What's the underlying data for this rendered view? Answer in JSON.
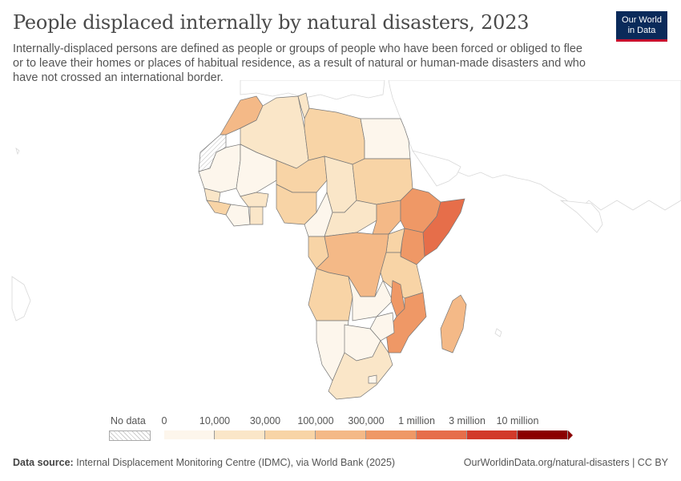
{
  "header": {
    "title": "People displaced internally by natural disasters, 2023",
    "subtitle": "Internally-displaced persons are defined as people or groups of people who have been forced or obliged to flee or to leave their homes or places of habitual residence, as a result of natural or human-made disasters and who have not crossed an international border."
  },
  "logo": {
    "line1": "Our World",
    "line2": "in Data"
  },
  "legend": {
    "nodata_label": "No data",
    "bins": [
      {
        "label": "0",
        "color": "#fdf6ec"
      },
      {
        "label": "10,000",
        "color": "#fae6c8"
      },
      {
        "label": "30,000",
        "color": "#f8d4a6"
      },
      {
        "label": "100,000",
        "color": "#f4b987"
      },
      {
        "label": "300,000",
        "color": "#ef9866"
      },
      {
        "label": "1 million",
        "color": "#e66e4a"
      },
      {
        "label": "3 million",
        "color": "#d23a2a"
      },
      {
        "label": "10 million",
        "color": "#8b0000"
      }
    ]
  },
  "map_data": {
    "region": "Africa",
    "year": 2023,
    "countries": [
      {
        "name": "Somalia",
        "category": "1 million–3 million"
      },
      {
        "name": "Ethiopia",
        "category": "300,000–1 million"
      },
      {
        "name": "Kenya",
        "category": "300,000–1 million"
      },
      {
        "name": "Mozambique",
        "category": "300,000–1 million"
      },
      {
        "name": "Malawi",
        "category": "300,000–1 million"
      },
      {
        "name": "Morocco",
        "category": "100,000–300,000"
      },
      {
        "name": "DR Congo",
        "category": "100,000–300,000"
      },
      {
        "name": "South Sudan",
        "category": "100,000–300,000"
      },
      {
        "name": "Nigeria",
        "category": "30,000–100,000"
      },
      {
        "name": "Sudan",
        "category": "30,000–100,000"
      },
      {
        "name": "Madagascar",
        "category": "30,000–100,000"
      },
      {
        "name": "Angola",
        "category": "30,000–100,000"
      },
      {
        "name": "Tanzania",
        "category": "30,000–100,000"
      },
      {
        "name": "Niger",
        "category": "30,000–100,000"
      },
      {
        "name": "Libya",
        "category": "30,000–100,000"
      },
      {
        "name": "Algeria",
        "category": "10,000–30,000"
      },
      {
        "name": "Chad",
        "category": "10,000–30,000"
      },
      {
        "name": "South Africa",
        "category": "10,000–30,000"
      },
      {
        "name": "Egypt",
        "category": "0–10,000"
      },
      {
        "name": "Mali",
        "category": "0–10,000"
      },
      {
        "name": "Mauritania",
        "category": "0–10,000"
      },
      {
        "name": "Namibia",
        "category": "0–10,000"
      },
      {
        "name": "Zambia",
        "category": "0–10,000"
      },
      {
        "name": "Botswana",
        "category": "0–10,000"
      },
      {
        "name": "Western Sahara",
        "category": "No data"
      }
    ]
  },
  "footer": {
    "source_label": "Data source:",
    "source_text": "Internal Displacement Monitoring Centre (IDMC), via World Bank (2025)",
    "url": "OurWorldinData.org/natural-disasters | CC BY"
  }
}
